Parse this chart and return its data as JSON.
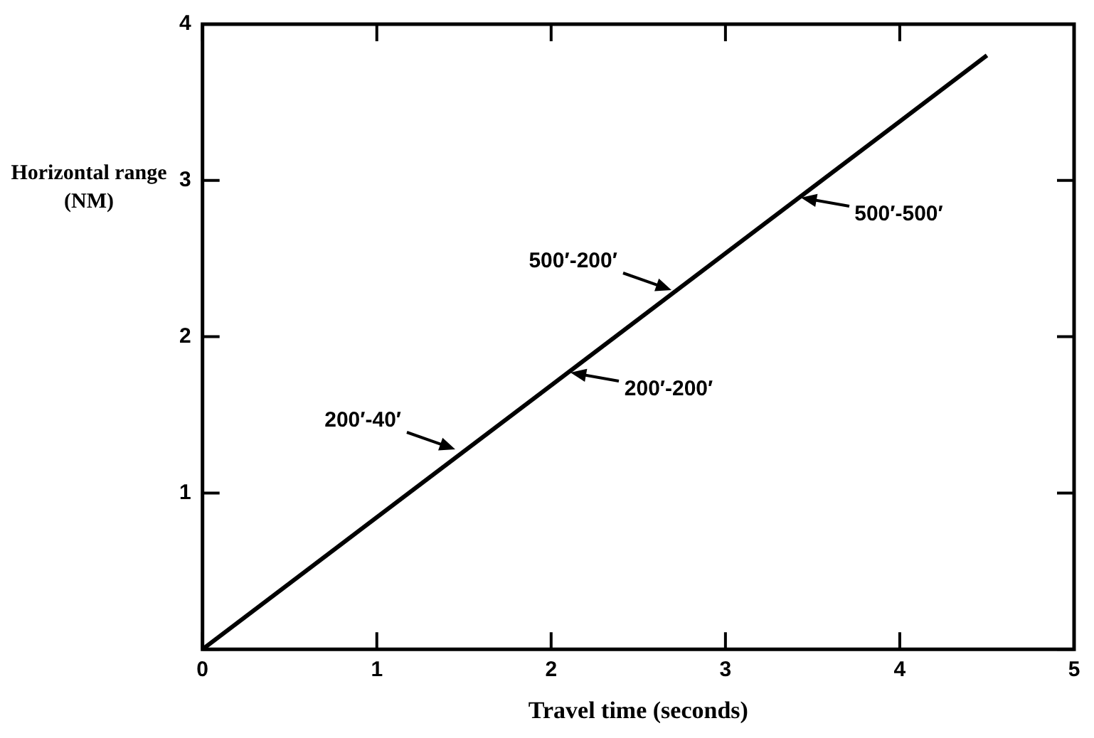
{
  "chart_data": {
    "type": "line",
    "xlabel": "Travel time (seconds)",
    "ylabel": "Horizontal range (NM)",
    "x": [
      0,
      4.5
    ],
    "values": [
      0,
      3.8
    ],
    "color": "#000000",
    "marker": "none",
    "line_style": "solid",
    "grid": false,
    "legend": false,
    "xlim": [
      0,
      5
    ],
    "xticks": [
      0,
      1,
      2,
      3,
      4,
      5
    ],
    "ylim": [
      0,
      4
    ],
    "yticks": [
      {
        "value": 0,
        "label": null
      },
      1,
      2,
      3,
      4
    ],
    "annotations": [
      {
        "text": "200′-40′",
        "x": 1.45,
        "y": 1.28
      },
      {
        "text": "200′-200′",
        "x": 2.11,
        "y": 1.77
      },
      {
        "text": "500′-200′",
        "x": 2.69,
        "y": 2.3
      },
      {
        "text": "500′-500′",
        "x": 3.43,
        "y": 2.89
      }
    ]
  }
}
